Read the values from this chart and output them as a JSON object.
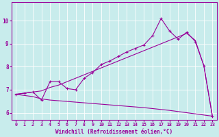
{
  "xlabel": "Windchill (Refroidissement éolien,°C)",
  "background_color": "#c8ecec",
  "line_color": "#990099",
  "ylim": [
    5.7,
    10.8
  ],
  "xlim": [
    -0.5,
    23.5
  ],
  "yticks": [
    6,
    7,
    8,
    9,
    10
  ],
  "xticks": [
    0,
    1,
    2,
    3,
    4,
    5,
    6,
    7,
    8,
    9,
    10,
    11,
    12,
    13,
    14,
    15,
    16,
    17,
    18,
    19,
    20,
    21,
    22,
    23
  ],
  "zigzag_x": [
    0,
    1,
    2,
    3,
    4,
    5,
    6,
    7,
    8,
    9,
    10,
    11,
    12,
    13,
    14,
    15,
    16,
    17,
    18,
    19,
    20,
    21,
    22,
    23
  ],
  "zigzag_y": [
    6.8,
    6.85,
    6.9,
    6.55,
    7.35,
    7.35,
    7.05,
    7.0,
    7.5,
    7.75,
    8.1,
    8.25,
    8.45,
    8.65,
    8.8,
    8.95,
    9.35,
    10.1,
    9.55,
    9.2,
    9.5,
    9.1,
    8.05,
    5.85
  ],
  "trend_x": [
    0,
    1,
    2,
    3,
    4,
    5,
    6,
    7,
    8,
    9,
    10,
    11,
    12,
    13,
    14,
    15,
    16,
    17,
    18,
    19,
    20,
    21,
    22,
    23
  ],
  "trend_y": [
    6.8,
    6.85,
    6.9,
    6.95,
    7.1,
    7.2,
    7.35,
    7.5,
    7.65,
    7.8,
    7.95,
    8.1,
    8.25,
    8.4,
    8.55,
    8.7,
    8.85,
    9.0,
    9.15,
    9.3,
    9.45,
    9.15,
    8.05,
    5.85
  ],
  "bottom_x": [
    0,
    1,
    2,
    3,
    4,
    5,
    6,
    7,
    8,
    9,
    10,
    11,
    12,
    13,
    14,
    15,
    16,
    17,
    18,
    19,
    20,
    21,
    22,
    23
  ],
  "bottom_y": [
    6.8,
    6.75,
    6.7,
    6.6,
    6.55,
    6.52,
    6.49,
    6.46,
    6.43,
    6.4,
    6.37,
    6.34,
    6.31,
    6.28,
    6.25,
    6.22,
    6.18,
    6.14,
    6.1,
    6.05,
    6.0,
    5.95,
    5.9,
    5.85
  ]
}
